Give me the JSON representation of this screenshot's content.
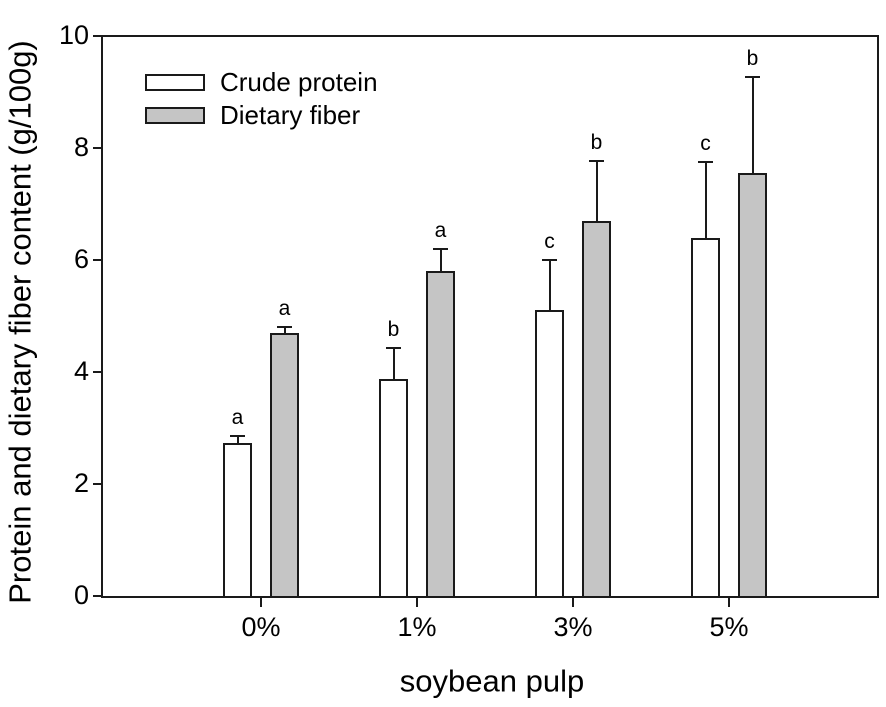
{
  "figure": {
    "ylabel": "Protein and dietary fiber content (g/100g)",
    "xlabel": "soybean pulp"
  },
  "legend": {
    "items": [
      {
        "label": "Crude protein",
        "fill": "#ffffff"
      },
      {
        "label": "Dietary fiber",
        "fill": "#c5c5c5"
      }
    ]
  },
  "colors": {
    "bar_outline": "#1a1a1a",
    "crude_protein_fill": "#ffffff",
    "dietary_fiber_fill": "#c5c5c5",
    "text": "#000000"
  },
  "chart_data": {
    "type": "bar",
    "title": "",
    "xlabel": "soybean pulp",
    "ylabel": "Protein and dietary fiber content (g/100g)",
    "categories": [
      "0%",
      "1%",
      "3%",
      "5%"
    ],
    "ylim": [
      0,
      10
    ],
    "yticks": [
      0,
      2,
      4,
      6,
      8,
      10
    ],
    "grid": false,
    "legend_position": "top-left-inside",
    "error_bars": "upper-caps-only",
    "series": [
      {
        "name": "Crude protein",
        "fill": "#ffffff",
        "values": [
          2.73,
          3.88,
          5.1,
          6.4
        ],
        "errors": [
          0.13,
          0.55,
          0.9,
          1.35
        ],
        "sig_letters": [
          "a",
          "b",
          "c",
          "c"
        ]
      },
      {
        "name": "Dietary fiber",
        "fill": "#c5c5c5",
        "values": [
          4.7,
          5.8,
          6.7,
          7.55
        ],
        "errors": [
          0.1,
          0.4,
          1.07,
          1.72
        ],
        "sig_letters": [
          "a",
          "a",
          "b",
          "b"
        ]
      }
    ]
  }
}
